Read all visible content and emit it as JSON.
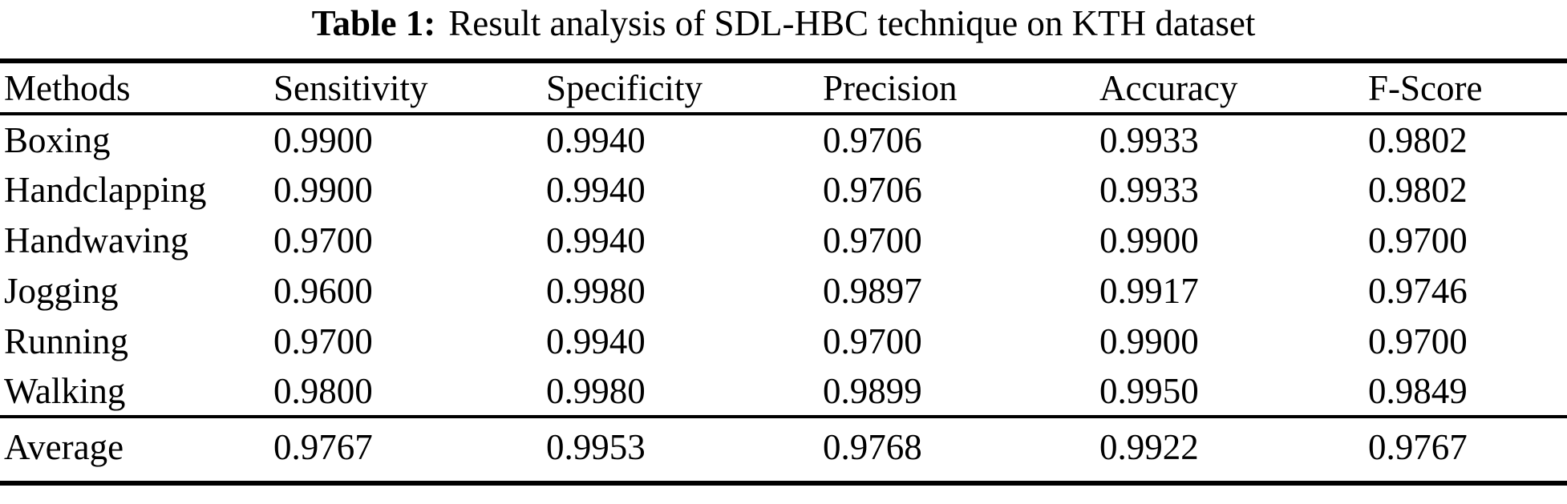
{
  "caption": {
    "label": "Table 1:",
    "text": "Result analysis of SDL-HBC technique on KTH dataset"
  },
  "table": {
    "columns": [
      "Methods",
      "Sensitivity",
      "Specificity",
      "Precision",
      "Accuracy",
      "F-Score"
    ],
    "rows": [
      {
        "method": "Boxing",
        "values": [
          "0.9900",
          "0.9940",
          "0.9706",
          "0.9933",
          "0.9802"
        ]
      },
      {
        "method": "Handclapping",
        "values": [
          "0.9900",
          "0.9940",
          "0.9706",
          "0.9933",
          "0.9802"
        ]
      },
      {
        "method": "Handwaving",
        "values": [
          "0.9700",
          "0.9940",
          "0.9700",
          "0.9900",
          "0.9700"
        ]
      },
      {
        "method": "Jogging",
        "values": [
          "0.9600",
          "0.9980",
          "0.9897",
          "0.9917",
          "0.9746"
        ]
      },
      {
        "method": "Running",
        "values": [
          "0.9700",
          "0.9940",
          "0.9700",
          "0.9900",
          "0.9700"
        ]
      },
      {
        "method": "Walking",
        "values": [
          "0.9800",
          "0.9980",
          "0.9899",
          "0.9950",
          "0.9849"
        ]
      }
    ],
    "summary_row": {
      "method": "Average",
      "values": [
        "0.9767",
        "0.9953",
        "0.9768",
        "0.9922",
        "0.9767"
      ]
    }
  },
  "colors": {
    "text": "#000000",
    "background": "#ffffff",
    "rule": "#000000"
  }
}
